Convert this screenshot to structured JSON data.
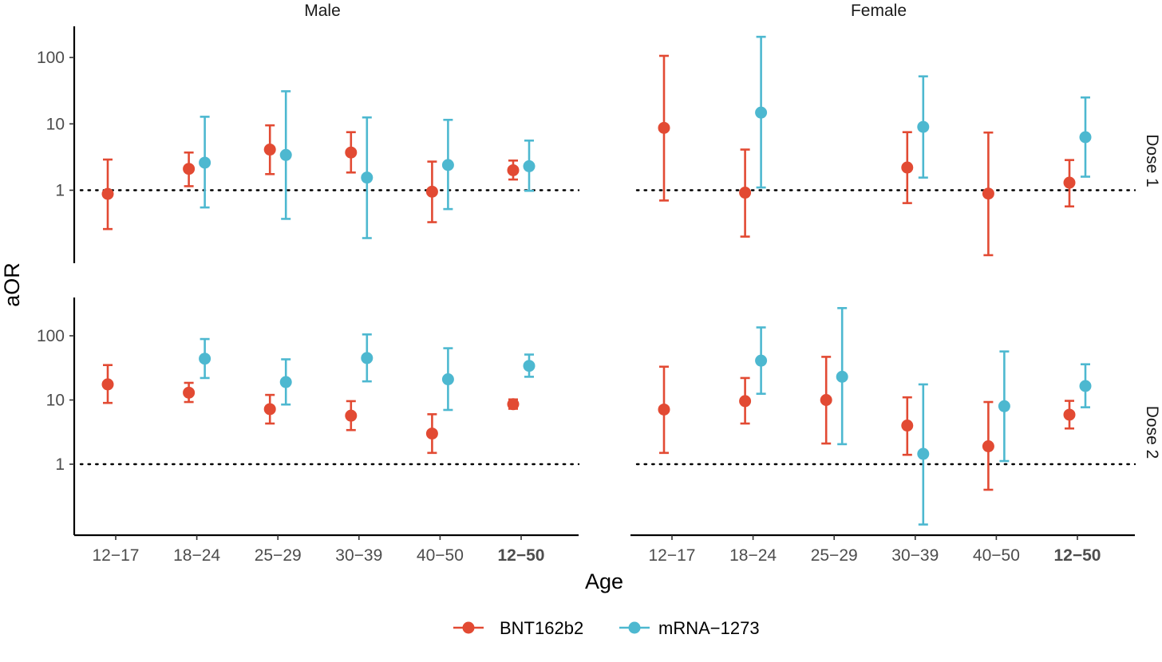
{
  "chart_data": {
    "type": "scatter",
    "xlabel": "Age",
    "ylabel": "aOR",
    "y_scale": "log10",
    "ylim": [
      0.07,
      350
    ],
    "y_ticks": [
      {
        "value": 1,
        "label": "1"
      },
      {
        "value": 10,
        "label": "10"
      },
      {
        "value": 100,
        "label": "100"
      }
    ],
    "categories": [
      "12−17",
      "18−24",
      "25−29",
      "30−39",
      "40−50",
      "12−50"
    ],
    "bold_categories": [
      "12−50"
    ],
    "reference_line": 1,
    "columns": [
      "Male",
      "Female"
    ],
    "rows": [
      "Dose 1",
      "Dose 2"
    ],
    "legend": {
      "position": "bottom"
    },
    "series": [
      {
        "name": "BNT162b2",
        "color": "#e24a33"
      },
      {
        "name": "mRNA−1273",
        "color": "#4db8d0"
      }
    ],
    "panels": [
      {
        "column": "Male",
        "row": "Dose 1",
        "points": [
          {
            "series": "BNT162b2",
            "category": "12−17",
            "y": 0.88,
            "lo": 0.26,
            "hi": 2.9
          },
          {
            "series": "BNT162b2",
            "category": "18−24",
            "y": 2.1,
            "lo": 1.15,
            "hi": 3.7
          },
          {
            "series": "mRNA−1273",
            "category": "18−24",
            "y": 2.6,
            "lo": 0.55,
            "hi": 12.8
          },
          {
            "series": "BNT162b2",
            "category": "25−29",
            "y": 4.1,
            "lo": 1.75,
            "hi": 9.5
          },
          {
            "series": "mRNA−1273",
            "category": "25−29",
            "y": 3.4,
            "lo": 0.37,
            "hi": 31
          },
          {
            "series": "BNT162b2",
            "category": "30−39",
            "y": 3.7,
            "lo": 1.85,
            "hi": 7.5
          },
          {
            "series": "mRNA−1273",
            "category": "30−39",
            "y": 1.55,
            "lo": 0.19,
            "hi": 12.5
          },
          {
            "series": "BNT162b2",
            "category": "40−50",
            "y": 0.95,
            "lo": 0.33,
            "hi": 2.7
          },
          {
            "series": "mRNA−1273",
            "category": "40−50",
            "y": 2.4,
            "lo": 0.52,
            "hi": 11.5
          },
          {
            "series": "BNT162b2",
            "category": "12−50",
            "y": 2.0,
            "lo": 1.45,
            "hi": 2.8
          },
          {
            "series": "mRNA−1273",
            "category": "12−50",
            "y": 2.3,
            "lo": 0.98,
            "hi": 5.6
          }
        ]
      },
      {
        "column": "Female",
        "row": "Dose 1",
        "points": [
          {
            "series": "BNT162b2",
            "category": "12−17",
            "y": 8.7,
            "lo": 0.7,
            "hi": 106
          },
          {
            "series": "BNT162b2",
            "category": "18−24",
            "y": 0.92,
            "lo": 0.2,
            "hi": 4.1
          },
          {
            "series": "mRNA−1273",
            "category": "18−24",
            "y": 14.8,
            "lo": 1.1,
            "hi": 205
          },
          {
            "series": "BNT162b2",
            "category": "30−39",
            "y": 2.2,
            "lo": 0.64,
            "hi": 7.5
          },
          {
            "series": "mRNA−1273",
            "category": "30−39",
            "y": 9.0,
            "lo": 1.55,
            "hi": 52
          },
          {
            "series": "BNT162b2",
            "category": "40−50",
            "y": 0.89,
            "lo": 0.105,
            "hi": 7.4
          },
          {
            "series": "BNT162b2",
            "category": "12−50",
            "y": 1.3,
            "lo": 0.57,
            "hi": 2.85
          },
          {
            "series": "mRNA−1273",
            "category": "12−50",
            "y": 6.3,
            "lo": 1.6,
            "hi": 25
          }
        ]
      },
      {
        "column": "Male",
        "row": "Dose 2",
        "points": [
          {
            "series": "BNT162b2",
            "category": "12−17",
            "y": 17.5,
            "lo": 9.0,
            "hi": 35
          },
          {
            "series": "BNT162b2",
            "category": "18−24",
            "y": 13,
            "lo": 9.3,
            "hi": 18.5
          },
          {
            "series": "mRNA−1273",
            "category": "18−24",
            "y": 44,
            "lo": 22,
            "hi": 89
          },
          {
            "series": "BNT162b2",
            "category": "25−29",
            "y": 7.2,
            "lo": 4.3,
            "hi": 12
          },
          {
            "series": "mRNA−1273",
            "category": "25−29",
            "y": 19,
            "lo": 8.5,
            "hi": 43
          },
          {
            "series": "BNT162b2",
            "category": "30−39",
            "y": 5.7,
            "lo": 3.4,
            "hi": 9.6
          },
          {
            "series": "mRNA−1273",
            "category": "30−39",
            "y": 45,
            "lo": 19.5,
            "hi": 105
          },
          {
            "series": "BNT162b2",
            "category": "40−50",
            "y": 3.0,
            "lo": 1.5,
            "hi": 6.0
          },
          {
            "series": "mRNA−1273",
            "category": "40−50",
            "y": 21,
            "lo": 7.0,
            "hi": 64
          },
          {
            "series": "BNT162b2",
            "category": "12−50",
            "y": 8.6,
            "lo": 7.3,
            "hi": 10.2
          },
          {
            "series": "mRNA−1273",
            "category": "12−50",
            "y": 34,
            "lo": 23,
            "hi": 51
          }
        ]
      },
      {
        "column": "Female",
        "row": "Dose 2",
        "points": [
          {
            "series": "BNT162b2",
            "category": "12−17",
            "y": 7.1,
            "lo": 1.5,
            "hi": 33
          },
          {
            "series": "BNT162b2",
            "category": "18−24",
            "y": 9.6,
            "lo": 4.3,
            "hi": 22
          },
          {
            "series": "mRNA−1273",
            "category": "18−24",
            "y": 41,
            "lo": 12.5,
            "hi": 135
          },
          {
            "series": "BNT162b2",
            "category": "25−29",
            "y": 10,
            "lo": 2.1,
            "hi": 47
          },
          {
            "series": "mRNA−1273",
            "category": "25−29",
            "y": 23,
            "lo": 2.05,
            "hi": 270
          },
          {
            "series": "BNT162b2",
            "category": "30−39",
            "y": 4.0,
            "lo": 1.4,
            "hi": 11
          },
          {
            "series": "mRNA−1273",
            "category": "30−39",
            "y": 1.45,
            "lo": 0.115,
            "hi": 17.5
          },
          {
            "series": "BNT162b2",
            "category": "40−50",
            "y": 1.9,
            "lo": 0.4,
            "hi": 9.3
          },
          {
            "series": "mRNA−1273",
            "category": "40−50",
            "y": 8.0,
            "lo": 1.12,
            "hi": 57
          },
          {
            "series": "BNT162b2",
            "category": "12−50",
            "y": 5.9,
            "lo": 3.6,
            "hi": 9.7
          },
          {
            "series": "mRNA−1273",
            "category": "12−50",
            "y": 16.5,
            "lo": 7.7,
            "hi": 36
          }
        ]
      }
    ]
  }
}
